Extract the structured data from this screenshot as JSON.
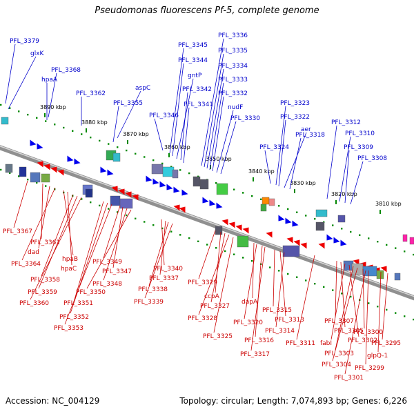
{
  "title": "Pseudomonas fluorescens Pf-5, complete genome",
  "accession_label": "Accession: NC_004129",
  "summary_label": "Topology: circular; Length: 7,074,893 bp; Genes: 6,226",
  "colors": {
    "forward_label": "#0000cc",
    "reverse_label": "#cc0000",
    "forward_feature": "#0000ee",
    "reverse_feature": "#ee0000",
    "backbone": "#909090",
    "tick_dots": "#008800"
  },
  "scale_ticks": [
    "3890 kbp",
    "3880 kbp",
    "3870 kbp",
    "3860 kbp",
    "3850 kbp",
    "3840 kbp",
    "3830 kbp",
    "3820 kbp",
    "3810 kbp"
  ],
  "forward_genes": [
    "PFL_3379",
    "glxK",
    "PFL_3368",
    "hpaA",
    "PFL_3362",
    "aspC",
    "PFL_3355",
    "PFL_3346",
    "PFL_3345",
    "PFL_3344",
    "gntP",
    "PFL_3342",
    "PFL_3341",
    "PFL_3336",
    "PFL_3335",
    "PFL_3334",
    "PFL_3333",
    "PFL_3332",
    "nudF",
    "PFL_3330",
    "PFL_3323",
    "PFL_3322",
    "aer",
    "PFL_3318",
    "PFL_3324",
    "PFL_3312",
    "PFL_3310",
    "PFL_3309",
    "PFL_3308"
  ],
  "reverse_genes": [
    "PFL_3367",
    "PFL_3361",
    "dad",
    "PFL_3364",
    "hpaB",
    "hpaC",
    "PFL_3358",
    "PFL_3359",
    "PFL_3360",
    "PFL_3351",
    "PFL_3352",
    "PFL_3353",
    "PFL_3349",
    "PFL_3347",
    "PFL_3348",
    "PFL_3350",
    "PFL_3340",
    "PFL_3337",
    "PFL_3338",
    "PFL_3339",
    "PFL_3329",
    "ccpA",
    "PFL_3327",
    "PFL_3328",
    "PFL_3325",
    "dapA",
    "PFL_3320",
    "PFL_3316",
    "PFL_3317",
    "PFL_3315",
    "PFL_3313",
    "PFL_3314",
    "PFL_3311",
    "PFL_3307",
    "PFL_3305",
    "fabI",
    "PFL_3302",
    "PFL_3303",
    "PFL_3304",
    "PFL_3300",
    "PFL_3299",
    "PFL_3301",
    "PFL_3295",
    "glpQ-1"
  ]
}
